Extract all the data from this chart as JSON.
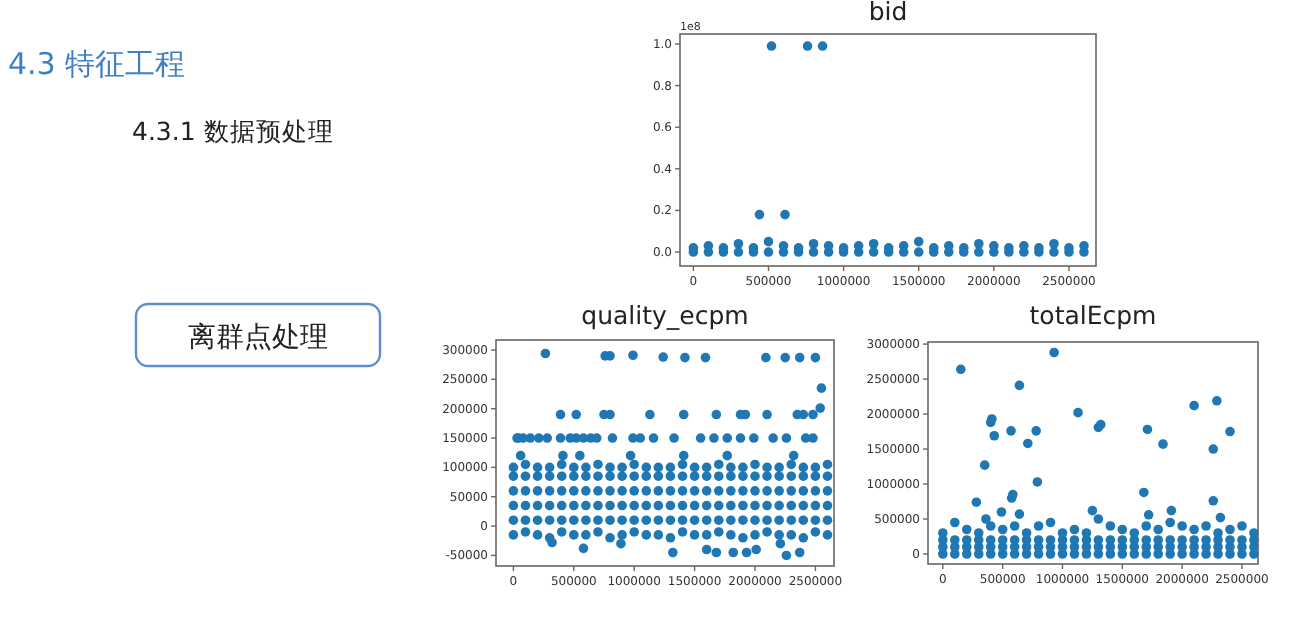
{
  "chart_data": [
    {
      "type": "other",
      "title": "4.3 特征工程",
      "annotations": [
        "4.3.1 数据预处理",
        "离群点处理"
      ]
    },
    {
      "type": "scatter",
      "title": "bid",
      "annotations": [
        "1e8"
      ],
      "marker": "circle",
      "grid": false,
      "xlim": [
        -89000,
        2680000
      ],
      "ylim": [
        -0.067,
        1.048
      ],
      "xticks": [
        0,
        500000,
        1000000,
        1500000,
        2000000,
        2500000
      ],
      "yticks": [
        {
          "value": 0,
          "label": "0.0"
        },
        0.2,
        0.4,
        0.6,
        0.8,
        {
          "value": 1,
          "label": "1.0"
        }
      ],
      "x": [
        0,
        100000,
        200000,
        300000,
        400000,
        500000,
        600000,
        700000,
        800000,
        900000,
        1000000,
        1100000,
        1200000,
        1300000,
        1400000,
        1500000,
        1600000,
        1700000,
        1800000,
        1900000,
        2000000,
        2100000,
        2200000,
        2300000,
        2400000,
        2500000,
        2600000
      ],
      "series": [
        {
          "color": "#1f77b4",
          "values": [
            0,
            0,
            0,
            0,
            0,
            0,
            0,
            0,
            0,
            0,
            0,
            0,
            0,
            0,
            0,
            0,
            0,
            0,
            0,
            0,
            0,
            0,
            0,
            0,
            0,
            0,
            0
          ]
        },
        {
          "color": "#1f77b4",
          "values": [
            0.02,
            0.03,
            0.02,
            0.04,
            0.02,
            0.05,
            0.03,
            0.02,
            0.04,
            0.03,
            0.02,
            0.03,
            0.04,
            0.02,
            0.03,
            0.05,
            0.02,
            0.03,
            0.02,
            0.04,
            0.03,
            0.02,
            0.03,
            0.02,
            0.04,
            0.02,
            0.03
          ]
        },
        {
          "color": "#1f77b4",
          "x": [
            440000,
            520000,
            610000,
            760000,
            860000
          ],
          "values": [
            0.18,
            0.99,
            0.18,
            0.99,
            0.99
          ]
        }
      ]
    },
    {
      "type": "scatter",
      "title": "quality_ecpm",
      "marker": "circle",
      "grid": false,
      "xlim": [
        -144000,
        2654000
      ],
      "ylim": [
        -68000,
        317000
      ],
      "xticks": [
        0,
        500000,
        1000000,
        1500000,
        2000000,
        2500000
      ],
      "yticks": [
        -50000,
        0,
        50000,
        100000,
        150000,
        200000,
        250000,
        300000
      ],
      "x": [
        0,
        100000,
        200000,
        300000,
        400000,
        500000,
        600000,
        700000,
        800000,
        900000,
        1000000,
        1100000,
        1200000,
        1300000,
        1400000,
        1500000,
        1600000,
        1700000,
        1800000,
        1900000,
        2000000,
        2100000,
        2200000,
        2300000,
        2400000,
        2500000,
        2600000
      ],
      "series": [
        {
          "color": "#1f77b4",
          "values": [
            -15000,
            -10000,
            -15000,
            -20000,
            -10000,
            -15000,
            -15000,
            -10000,
            -20000,
            -15000,
            -10000,
            -15000,
            -15000,
            -20000,
            -10000,
            -15000,
            -15000,
            -10000,
            -15000,
            -20000,
            -15000,
            -10000,
            -15000,
            -15000,
            -20000,
            -10000,
            -15000
          ]
        },
        {
          "color": "#1f77b4",
          "values": [
            10000,
            10000,
            10000,
            10000,
            10000,
            10000,
            10000,
            10000,
            10000,
            10000,
            10000,
            10000,
            10000,
            10000,
            10000,
            10000,
            10000,
            10000,
            10000,
            10000,
            10000,
            10000,
            10000,
            10000,
            10000,
            10000,
            10000
          ]
        },
        {
          "color": "#1f77b4",
          "values": [
            35000,
            35000,
            35000,
            35000,
            35000,
            35000,
            35000,
            35000,
            35000,
            35000,
            35000,
            35000,
            35000,
            35000,
            35000,
            35000,
            35000,
            35000,
            35000,
            35000,
            35000,
            35000,
            35000,
            35000,
            35000,
            35000,
            35000
          ]
        },
        {
          "color": "#1f77b4",
          "values": [
            60000,
            60000,
            60000,
            60000,
            60000,
            60000,
            60000,
            60000,
            60000,
            60000,
            60000,
            60000,
            60000,
            60000,
            60000,
            60000,
            60000,
            60000,
            60000,
            60000,
            60000,
            60000,
            60000,
            60000,
            60000,
            60000,
            60000
          ]
        },
        {
          "color": "#1f77b4",
          "values": [
            85000,
            85000,
            85000,
            85000,
            85000,
            85000,
            85000,
            85000,
            85000,
            85000,
            85000,
            85000,
            85000,
            85000,
            85000,
            85000,
            85000,
            85000,
            85000,
            85000,
            85000,
            85000,
            85000,
            85000,
            85000,
            85000,
            85000
          ]
        },
        {
          "color": "#1f77b4",
          "values": [
            100000,
            105000,
            100000,
            100000,
            105000,
            100000,
            100000,
            105000,
            100000,
            100000,
            105000,
            100000,
            100000,
            100000,
            105000,
            100000,
            100000,
            105000,
            100000,
            100000,
            105000,
            100000,
            100000,
            105000,
            100000,
            100000,
            105000
          ]
        },
        {
          "color": "#1f77b4",
          "x": [
            265000,
            760000,
            800000,
            990000,
            1240000,
            1420000,
            1590000,
            2090000,
            2250000,
            2370000,
            2500000,
            2550000,
            2540000,
            30000,
            40000,
            80000,
            140000,
            210000,
            280000,
            390000,
            470000,
            520000,
            580000,
            640000,
            690000,
            820000,
            990000,
            1050000,
            1160000,
            1330000,
            1550000,
            1660000,
            1770000,
            1880000,
            1990000,
            2150000,
            2260000,
            2420000,
            2480000,
            390000,
            520000,
            750000,
            800000,
            1130000,
            1410000,
            1680000,
            1880000,
            1920000,
            2100000,
            2350000,
            2400000,
            2480000,
            60000,
            410000,
            550000,
            970000,
            1410000,
            1770000,
            2320000,
            320000,
            580000,
            890000,
            1320000,
            1600000,
            1680000,
            1820000,
            1930000,
            2010000,
            2210000,
            2260000,
            2370000
          ],
          "values": [
            294000,
            290000,
            290000,
            291000,
            288000,
            287000,
            287000,
            287000,
            287000,
            287000,
            287000,
            235000,
            201000,
            150000,
            150000,
            150000,
            150000,
            150000,
            150000,
            150000,
            150000,
            150000,
            150000,
            150000,
            150000,
            150000,
            150000,
            150000,
            150000,
            150000,
            150000,
            150000,
            150000,
            150000,
            150000,
            150000,
            150000,
            150000,
            150000,
            190000,
            190000,
            190000,
            190000,
            190000,
            190000,
            190000,
            190000,
            190000,
            190000,
            190000,
            190000,
            190000,
            120000,
            120000,
            120000,
            120000,
            120000,
            120000,
            120000,
            -28000,
            -38000,
            -30000,
            -45000,
            -40000,
            -45000,
            -45000,
            -45000,
            -40000,
            -30000,
            -50000,
            -45000
          ]
        }
      ]
    },
    {
      "type": "scatter",
      "title": "totalEcpm",
      "marker": "circle",
      "grid": false,
      "xlim": [
        -124000,
        2634000
      ],
      "ylim": [
        -143000,
        3030000
      ],
      "xticks": [
        0,
        500000,
        1000000,
        1500000,
        2000000,
        2500000
      ],
      "yticks": [
        0,
        500000,
        1000000,
        1500000,
        2000000,
        2500000,
        3000000
      ],
      "x": [
        0,
        100000,
        200000,
        300000,
        400000,
        500000,
        600000,
        700000,
        800000,
        900000,
        1000000,
        1100000,
        1200000,
        1300000,
        1400000,
        1500000,
        1600000,
        1700000,
        1800000,
        1900000,
        2000000,
        2100000,
        2200000,
        2300000,
        2400000,
        2500000,
        2600000
      ],
      "series": [
        {
          "color": "#1f77b4",
          "values": [
            0,
            0,
            0,
            0,
            0,
            0,
            0,
            0,
            0,
            0,
            0,
            0,
            0,
            0,
            0,
            0,
            0,
            0,
            0,
            0,
            0,
            0,
            0,
            0,
            0,
            0,
            0
          ]
        },
        {
          "color": "#1f77b4",
          "values": [
            100000,
            100000,
            100000,
            100000,
            100000,
            100000,
            100000,
            100000,
            100000,
            100000,
            100000,
            100000,
            100000,
            100000,
            100000,
            100000,
            100000,
            100000,
            100000,
            100000,
            100000,
            100000,
            100000,
            100000,
            100000,
            100000,
            100000
          ]
        },
        {
          "color": "#1f77b4",
          "values": [
            200000,
            200000,
            200000,
            200000,
            200000,
            200000,
            200000,
            200000,
            200000,
            200000,
            200000,
            200000,
            200000,
            200000,
            200000,
            200000,
            200000,
            200000,
            200000,
            200000,
            200000,
            200000,
            200000,
            200000,
            200000,
            200000,
            200000
          ]
        },
        {
          "color": "#1f77b4",
          "values": [
            300000,
            450000,
            350000,
            300000,
            400000,
            350000,
            400000,
            300000,
            400000,
            450000,
            300000,
            350000,
            300000,
            500000,
            400000,
            350000,
            300000,
            400000,
            350000,
            450000,
            400000,
            350000,
            400000,
            300000,
            350000,
            400000,
            300000
          ]
        },
        {
          "color": "#1f77b4",
          "x": [
            150000,
            930000,
            640000,
            400000,
            410000,
            430000,
            570000,
            780000,
            710000,
            350000,
            280000,
            790000,
            575000,
            585000,
            490000,
            360000,
            640000,
            1130000,
            1300000,
            1320000,
            1250000,
            1680000,
            1710000,
            1720000,
            1840000,
            1910000,
            2100000,
            2260000,
            2260000,
            2290000,
            2320000,
            2400000
          ],
          "values": [
            2640000,
            2880000,
            2410000,
            1880000,
            1930000,
            1690000,
            1760000,
            1760000,
            1580000,
            1270000,
            740000,
            1030000,
            800000,
            850000,
            600000,
            500000,
            570000,
            2020000,
            1810000,
            1850000,
            620000,
            880000,
            1780000,
            560000,
            1570000,
            620000,
            2120000,
            1500000,
            760000,
            2190000,
            520000,
            1750000
          ]
        }
      ]
    }
  ]
}
